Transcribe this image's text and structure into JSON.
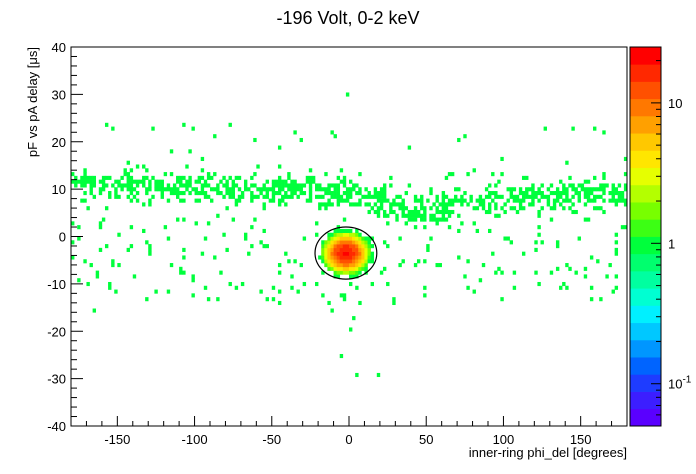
{
  "chart_data": {
    "type": "heatmap",
    "title": "-196 Volt, 0-2 keV",
    "xlabel": "inner-ring phi_del [degrees]",
    "ylabel": "pF vs pA delay [μs]",
    "xlim": [
      -180,
      180
    ],
    "ylim": [
      -40,
      40
    ],
    "x_ticks": [
      -150,
      -100,
      -50,
      0,
      50,
      100,
      150
    ],
    "y_ticks": [
      -40,
      -30,
      -20,
      -10,
      0,
      10,
      20,
      30,
      40
    ],
    "z_scale": "log",
    "z_range": [
      0.05,
      25
    ],
    "z_ticks": [
      {
        "value": 0.1,
        "label": "10",
        "exp": "-1"
      },
      {
        "value": 1,
        "label": "1"
      },
      {
        "value": 10,
        "label": "10"
      }
    ],
    "features": {
      "band": {
        "y_at_x_-180": 11,
        "y_at_x_0": 9.5,
        "y_at_x_45": 5,
        "y_at_x_90": 8,
        "y_at_x_180": 9,
        "typical_count": 1
      },
      "hotspot": {
        "x": -2,
        "y": -3.5,
        "peak_count": 20
      },
      "ellipse": {
        "cx": -2,
        "cy": -3.5,
        "rx": 20,
        "ry": 5.5
      }
    },
    "grid": false,
    "legend": "colorbar right"
  }
}
